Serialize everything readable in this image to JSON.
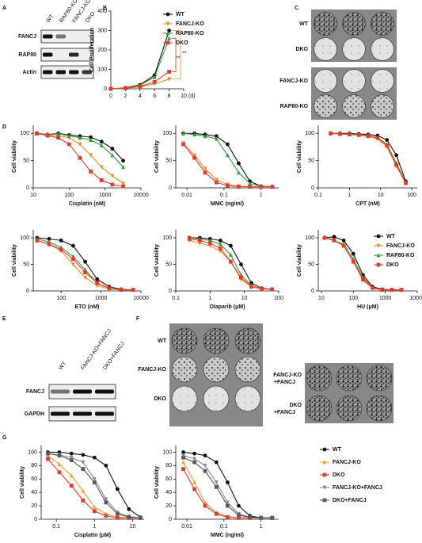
{
  "panel_labels": [
    "A",
    "B",
    "C",
    "D",
    "E",
    "F",
    "G"
  ],
  "blot_a": {
    "columns": [
      "WT",
      "RAP80-KO",
      "FANCJ-KO",
      "DKO"
    ],
    "rows": [
      "FANCJ",
      "RAP80",
      "Actin"
    ]
  },
  "colonies_c": {
    "rows": [
      "WT",
      "DKO",
      "FANCJ-KO",
      "RAP80-KO"
    ]
  },
  "blot_e": {
    "columns": [
      "WT",
      "FANCJ-KO+FANCJ",
      "DKO+FANCJ"
    ],
    "rows": [
      "FANCJ",
      "GAPDH"
    ]
  },
  "colonies_f": {
    "left_rows": [
      "WT",
      "FANCJ-KO",
      "DKO"
    ],
    "right_rows": [
      [
        "FANCJ-KO",
        "+FANCJ"
      ],
      [
        "DKO",
        "+FANCJ"
      ]
    ]
  },
  "chart_data": [
    {
      "type": "line",
      "xscale": "linear",
      "ylabel": "Cell Proliferation",
      "x_unit": "(d)",
      "annotations": [
        "**",
        "**"
      ],
      "legend": "upper right",
      "x": [
        0,
        2,
        4,
        6,
        8
      ],
      "xlim": [
        0,
        10
      ],
      "xticks": [
        0,
        2,
        4,
        6,
        8,
        10
      ],
      "ylim": [
        0,
        400
      ],
      "yticks": [
        0,
        100,
        200,
        300,
        400
      ],
      "series": [
        {
          "name": "WT",
          "color": "#111111",
          "marker": "circle",
          "values": [
            0,
            5,
            20,
            70,
            300
          ]
        },
        {
          "name": "FANCJ-KO",
          "color": "#f08a24",
          "marker": "triangle-down",
          "values": [
            0,
            3,
            10,
            25,
            50
          ]
        },
        {
          "name": "RAP80-KO",
          "color": "#2e9e3a",
          "marker": "triangle-up",
          "values": [
            0,
            4,
            18,
            60,
            260
          ]
        },
        {
          "name": "DKO",
          "color": "#e8392b",
          "marker": "square",
          "values": [
            0,
            4,
            12,
            35,
            88
          ]
        }
      ]
    },
    {
      "type": "line",
      "xscale": "log",
      "xlabel": "Cisplatin (nM)",
      "ylabel": "Cell viability",
      "x": [
        12.5,
        25,
        50,
        100,
        200,
        400,
        800,
        1600,
        3200
      ],
      "xlim": [
        10,
        10000
      ],
      "xticks": [
        10,
        100,
        1000,
        10000
      ],
      "ylim": [
        0,
        115
      ],
      "yticks": [
        0,
        50,
        100
      ],
      "series": [
        {
          "color": "#111111",
          "marker": "circle",
          "values": [
            100,
            98,
            100,
            97,
            95,
            93,
            85,
            72,
            50
          ]
        },
        {
          "color": "#f08a24",
          "marker": "triangle-down",
          "values": [
            100,
            97,
            96,
            92,
            80,
            60,
            38,
            22,
            8
          ]
        },
        {
          "color": "#2e9e3a",
          "marker": "triangle-up",
          "values": [
            100,
            98,
            99,
            96,
            92,
            88,
            78,
            60,
            38
          ]
        },
        {
          "color": "#e8392b",
          "marker": "square",
          "values": [
            100,
            96,
            92,
            80,
            55,
            30,
            14,
            6,
            3
          ]
        }
      ]
    },
    {
      "type": "line",
      "xscale": "log",
      "xlabel": "MMC (ng/ml)",
      "ylabel": "Cell viability",
      "x": [
        0.008,
        0.016,
        0.031,
        0.0625,
        0.125,
        0.25,
        0.5,
        1,
        2
      ],
      "xlim": [
        0.005,
        3
      ],
      "xticks": [
        0.01,
        0.1,
        1
      ],
      "ylim": [
        0,
        115
      ],
      "yticks": [
        0,
        50,
        100
      ],
      "series": [
        {
          "color": "#111111",
          "marker": "circle",
          "values": [
            100,
            100,
            98,
            95,
            80,
            45,
            12,
            3,
            2
          ]
        },
        {
          "color": "#f08a24",
          "marker": "triangle-down",
          "values": [
            82,
            60,
            35,
            15,
            6,
            3,
            2,
            2,
            2
          ]
        },
        {
          "color": "#2e9e3a",
          "marker": "triangle-up",
          "values": [
            100,
            98,
            95,
            90,
            60,
            28,
            8,
            3,
            2
          ]
        },
        {
          "color": "#e8392b",
          "marker": "square",
          "values": [
            80,
            55,
            28,
            10,
            4,
            2,
            2,
            2,
            2
          ]
        }
      ]
    },
    {
      "type": "line",
      "xscale": "log",
      "xlabel": "CPT (nM)",
      "ylabel": "Cell viability",
      "x": [
        0.25,
        0.5,
        1,
        2,
        4,
        8,
        16,
        32,
        64
      ],
      "xlim": [
        0.1,
        150
      ],
      "xticks": [
        0.1,
        1,
        10,
        100
      ],
      "ylim": [
        0,
        115
      ],
      "yticks": [
        0,
        50,
        100
      ],
      "series": [
        {
          "color": "#111111",
          "marker": "circle",
          "values": [
            100,
            100,
            100,
            99,
            98,
            96,
            88,
            60,
            12
          ]
        },
        {
          "color": "#f08a24",
          "marker": "triangle-down",
          "values": [
            100,
            99,
            98,
            97,
            95,
            90,
            75,
            40,
            8
          ]
        },
        {
          "color": "#2e9e3a",
          "marker": "triangle-up",
          "values": [
            100,
            99,
            99,
            98,
            96,
            92,
            80,
            45,
            10
          ]
        },
        {
          "color": "#e8392b",
          "marker": "square",
          "values": [
            100,
            99,
            98,
            97,
            95,
            92,
            78,
            42,
            9
          ]
        }
      ]
    },
    {
      "type": "line",
      "xscale": "log",
      "xlabel": "ETO (nM)",
      "ylabel": "Cell viability",
      "x": [
        25,
        50,
        100,
        200,
        400,
        800,
        1600,
        3200,
        6400
      ],
      "xlim": [
        20,
        10000
      ],
      "xticks": [
        100,
        1000,
        10000
      ],
      "ylim": [
        0,
        115
      ],
      "yticks": [
        0,
        50,
        100
      ],
      "series": [
        {
          "color": "#111111",
          "marker": "circle",
          "values": [
            100,
            98,
            95,
            85,
            55,
            22,
            8,
            3,
            2
          ]
        },
        {
          "color": "#f08a24",
          "marker": "triangle-down",
          "values": [
            95,
            88,
            75,
            50,
            25,
            10,
            4,
            2,
            2
          ]
        },
        {
          "color": "#2e9e3a",
          "marker": "triangle-up",
          "values": [
            98,
            92,
            82,
            65,
            40,
            15,
            5,
            2,
            2
          ]
        },
        {
          "color": "#e8392b",
          "marker": "square",
          "values": [
            95,
            88,
            78,
            60,
            35,
            15,
            5,
            2,
            2
          ]
        }
      ]
    },
    {
      "type": "line",
      "xscale": "log",
      "xlabel": "Olaparib (μM)",
      "ylabel": "Cell viability",
      "x": [
        0.25,
        0.5,
        1,
        2,
        4,
        8,
        16,
        32,
        64
      ],
      "xlim": [
        0.1,
        100
      ],
      "xticks": [
        0.1,
        1,
        10,
        100
      ],
      "ylim": [
        0,
        115
      ],
      "yticks": [
        0,
        50,
        100
      ],
      "series": [
        {
          "color": "#111111",
          "marker": "circle",
          "values": [
            100,
            100,
            98,
            95,
            85,
            50,
            15,
            5,
            3
          ]
        },
        {
          "color": "#f08a24",
          "marker": "triangle-down",
          "values": [
            95,
            90,
            85,
            75,
            55,
            22,
            8,
            4,
            3
          ]
        },
        {
          "color": "#2e9e3a",
          "marker": "triangle-up",
          "values": [
            100,
            98,
            95,
            88,
            68,
            30,
            10,
            4,
            3
          ]
        },
        {
          "color": "#e8392b",
          "marker": "square",
          "values": [
            98,
            95,
            90,
            80,
            55,
            25,
            8,
            4,
            3
          ]
        }
      ]
    },
    {
      "type": "line",
      "xscale": "log",
      "xlabel": "HU (μM)",
      "ylabel": "Cell viability",
      "legend": "right",
      "x": [
        12.5,
        25,
        50,
        100,
        200,
        400,
        800,
        1600,
        3200
      ],
      "xlim": [
        8,
        10000
      ],
      "xticks": [
        10,
        100,
        1000,
        10000
      ],
      "ylim": [
        0,
        115
      ],
      "yticks": [
        0,
        50,
        100
      ],
      "series": [
        {
          "name": "WT",
          "color": "#111111",
          "marker": "circle",
          "values": [
            100,
            102,
            95,
            70,
            30,
            8,
            3,
            2,
            2
          ]
        },
        {
          "name": "FANCJ-KO",
          "color": "#f08a24",
          "marker": "triangle-down",
          "values": [
            100,
            95,
            85,
            55,
            20,
            5,
            2,
            2,
            2
          ]
        },
        {
          "name": "RAP80-KO",
          "color": "#2e9e3a",
          "marker": "triangle-up",
          "values": [
            100,
            95,
            88,
            60,
            25,
            6,
            2,
            2,
            2
          ]
        },
        {
          "name": "DKO",
          "color": "#e8392b",
          "marker": "square",
          "values": [
            100,
            96,
            85,
            55,
            22,
            6,
            2,
            2,
            2
          ]
        }
      ]
    },
    {
      "type": "line",
      "xscale": "log",
      "xlabel": "Cisplatin (μM)",
      "ylabel": "Cell viability",
      "x": [
        0.06,
        0.12,
        0.25,
        0.5,
        1,
        2,
        4,
        8,
        16
      ],
      "xlim": [
        0.04,
        20
      ],
      "xticks": [
        0.1,
        1,
        10
      ],
      "ylim": [
        0,
        110
      ],
      "yticks": [
        0,
        20,
        40,
        60,
        80,
        100
      ],
      "series": [
        {
          "color": "#111111",
          "marker": "circle",
          "values": [
            100,
            100,
            98,
            96,
            92,
            80,
            45,
            15,
            3
          ]
        },
        {
          "color": "#f0a030",
          "marker": "triangle-up",
          "values": [
            95,
            82,
            65,
            42,
            18,
            8,
            3,
            2,
            2
          ]
        },
        {
          "color": "#e8392b",
          "marker": "square",
          "values": [
            90,
            70,
            50,
            28,
            12,
            5,
            2,
            2,
            2
          ]
        },
        {
          "color": "#8a8a8a",
          "marker": "triangle-down",
          "values": [
            98,
            96,
            92,
            85,
            60,
            30,
            10,
            4,
            2
          ]
        },
        {
          "color": "#5a5a5a",
          "marker": "square",
          "values": [
            98,
            95,
            88,
            75,
            55,
            25,
            8,
            3,
            2
          ]
        }
      ]
    },
    {
      "type": "line",
      "xscale": "log",
      "xlabel": "MMC (ng/ml)",
      "ylabel": "Cell viability",
      "legend": "outside right",
      "x": [
        0.008,
        0.016,
        0.031,
        0.0625,
        0.125,
        0.25,
        0.5,
        1,
        2
      ],
      "xlim": [
        0.005,
        3
      ],
      "xticks": [
        0.01,
        0.1,
        1
      ],
      "ylim": [
        0,
        110
      ],
      "yticks": [
        0,
        20,
        40,
        60,
        80,
        100
      ],
      "series": [
        {
          "name": "WT",
          "color": "#111111",
          "marker": "circle",
          "values": [
            100,
            98,
            95,
            85,
            55,
            20,
            5,
            2,
            2
          ]
        },
        {
          "name": "FANCJ-KO",
          "color": "#f0a030",
          "marker": "triangle-up",
          "values": [
            85,
            55,
            25,
            10,
            4,
            2,
            2,
            2,
            2
          ]
        },
        {
          "name": "DKO",
          "color": "#e8392b",
          "marker": "square",
          "values": [
            75,
            45,
            20,
            8,
            3,
            2,
            2,
            2,
            2
          ]
        },
        {
          "name": "FANCJ-KO+FANCJ",
          "color": "#8a8a8a",
          "marker": "triangle-down",
          "values": [
            95,
            90,
            80,
            55,
            25,
            8,
            3,
            2,
            2
          ]
        },
        {
          "name": "DKO+FANCJ",
          "color": "#5a5a5a",
          "marker": "square",
          "values": [
            92,
            85,
            72,
            48,
            20,
            6,
            3,
            2,
            2
          ]
        }
      ]
    }
  ]
}
